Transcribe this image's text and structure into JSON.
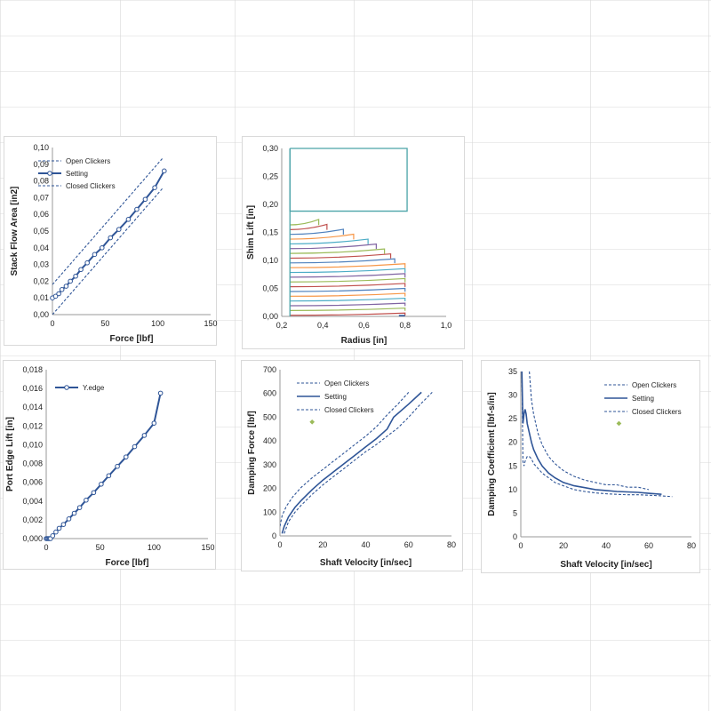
{
  "sheet": {
    "gridline_color": "#d9d9d9"
  },
  "colors": {
    "series": "#2f5597",
    "outline": "#4aa3a8",
    "marker": "#9bbb59"
  },
  "chart_data": [
    {
      "type": "line",
      "xlabel": "Force [lbf]",
      "ylabel": "Stack Flow Area [in2]",
      "xlim": [
        0,
        150
      ],
      "xticks": [
        "0",
        "50",
        "100",
        "150"
      ],
      "xtick_values": [
        0,
        50,
        100,
        150
      ],
      "ylim": [
        0,
        0.1
      ],
      "yticks": [
        "0,00",
        "0,01",
        "0,02",
        "0,03",
        "0,04",
        "0,05",
        "0,06",
        "0,07",
        "0,08",
        "0,09",
        "0,10"
      ],
      "ytick_values": [
        0,
        0.01,
        0.02,
        0.03,
        0.04,
        0.05,
        0.06,
        0.07,
        0.08,
        0.09,
        0.1
      ],
      "legend_position": "top-left",
      "series": [
        {
          "name": "Open Clickers",
          "style": "dashed",
          "x": [
            0,
            105
          ],
          "y": [
            0.018,
            0.094
          ]
        },
        {
          "name": "Setting",
          "style": "solid-markers",
          "x": [
            0,
            3,
            6,
            9,
            13,
            17,
            22,
            27,
            33,
            40,
            47,
            55,
            63,
            72,
            80,
            88,
            97,
            106
          ],
          "y": [
            0.01,
            0.011,
            0.0125,
            0.015,
            0.017,
            0.02,
            0.023,
            0.027,
            0.031,
            0.036,
            0.04,
            0.046,
            0.051,
            0.057,
            0.063,
            0.069,
            0.076,
            0.086
          ]
        },
        {
          "name": "Closed Clickers",
          "style": "dashed",
          "x": [
            0,
            105
          ],
          "y": [
            0.0,
            0.076
          ]
        }
      ]
    },
    {
      "type": "line",
      "xlabel": "Radius [in]",
      "ylabel": "Shim Lift [in]",
      "xlim": [
        0.2,
        1.0
      ],
      "xticks": [
        "0,2",
        "0,4",
        "0,6",
        "0,8",
        "1,0"
      ],
      "xtick_values": [
        0.2,
        0.4,
        0.6,
        0.8,
        1.0
      ],
      "ylim": [
        0,
        0.3
      ],
      "yticks": [
        "0,00",
        "0,05",
        "0,10",
        "0,15",
        "0,20",
        "0,25",
        "0,30"
      ],
      "ytick_values": [
        0,
        0.05,
        0.1,
        0.15,
        0.2,
        0.25,
        0.3
      ],
      "outline": {
        "x": [
          0.24,
          0.24,
          0.81,
          0.81,
          0.24
        ],
        "y": [
          0.3,
          0.188,
          0.188,
          0.3,
          0.3
        ]
      },
      "outline_right": {
        "x": [
          0.81,
          0.81
        ],
        "y": [
          0.3,
          0.0
        ]
      },
      "shims": {
        "x0": 0.24,
        "bottom": 0.002,
        "count": 20,
        "step": 0.0085,
        "outer_radius": 0.8,
        "top_outer_radii": [
          0.38,
          0.42,
          0.5,
          0.55,
          0.62,
          0.66,
          0.7,
          0.73,
          0.75
        ]
      },
      "shim_colors": [
        "#c0504d",
        "#9bbb59",
        "#8064a2",
        "#4bacc6",
        "#f79646",
        "#4f81bd",
        "#c0504d",
        "#9bbb59",
        "#8064a2",
        "#4bacc6",
        "#f79646",
        "#4f81bd",
        "#c0504d",
        "#9bbb59",
        "#8064a2",
        "#4bacc6",
        "#f79646",
        "#4f81bd",
        "#c0504d",
        "#9bbb59"
      ]
    },
    {
      "type": "line",
      "xlabel": "Force [lbf]",
      "ylabel": "Port Edge Lift [in]",
      "xlim": [
        0,
        150
      ],
      "xticks": [
        "0",
        "50",
        "100",
        "150"
      ],
      "xtick_values": [
        0,
        50,
        100,
        150
      ],
      "ylim": [
        0,
        0.018
      ],
      "yticks": [
        "0,000",
        "0,002",
        "0,004",
        "0,006",
        "0,008",
        "0,010",
        "0,012",
        "0,014",
        "0,016",
        "0,018"
      ],
      "ytick_values": [
        0,
        0.002,
        0.004,
        0.006,
        0.008,
        0.01,
        0.012,
        0.014,
        0.016,
        0.018
      ],
      "legend_position": "top-left",
      "series": [
        {
          "name": "Y.edge",
          "style": "solid-markers",
          "x": [
            0,
            1,
            2,
            3,
            4,
            6,
            9,
            12,
            16,
            21,
            26,
            31,
            37,
            44,
            51,
            58,
            66,
            74,
            82,
            91,
            100,
            106
          ],
          "y": [
            0,
            0,
            0,
            0,
            0,
            0.0003,
            0.0007,
            0.0011,
            0.0015,
            0.0021,
            0.0027,
            0.0033,
            0.0041,
            0.0049,
            0.0058,
            0.0067,
            0.0077,
            0.0087,
            0.0098,
            0.011,
            0.0123,
            0.0155
          ]
        }
      ]
    },
    {
      "type": "line",
      "xlabel": "Shaft Velocity [in/sec]",
      "ylabel": "Damping Force [lbf]",
      "xlim": [
        0,
        80
      ],
      "xticks": [
        "0",
        "20",
        "40",
        "60",
        "80"
      ],
      "xtick_values": [
        0,
        20,
        40,
        60,
        80
      ],
      "ylim": [
        0,
        700
      ],
      "yticks": [
        "0",
        "100",
        "200",
        "300",
        "400",
        "500",
        "600",
        "700"
      ],
      "ytick_values": [
        0,
        100,
        200,
        300,
        400,
        500,
        600,
        700
      ],
      "legend_position": "top-left",
      "series": [
        {
          "name": "Open Clickers",
          "style": "dashed",
          "x": [
            0,
            1,
            3,
            6,
            10,
            15,
            20,
            25,
            30,
            35,
            40,
            45,
            50,
            55,
            60
          ],
          "y": [
            40,
            85,
            125,
            165,
            205,
            245,
            280,
            315,
            350,
            385,
            420,
            460,
            510,
            555,
            605
          ]
        },
        {
          "name": "Setting",
          "style": "solid",
          "x": [
            1,
            2,
            4,
            7,
            10,
            15,
            20,
            25,
            30,
            35,
            40,
            45,
            50,
            53,
            60,
            66
          ],
          "y": [
            10,
            40,
            80,
            120,
            150,
            195,
            235,
            270,
            305,
            340,
            375,
            410,
            450,
            500,
            555,
            605
          ]
        },
        {
          "name": "Closed Clickers",
          "style": "dashed",
          "x": [
            2,
            4,
            7,
            10,
            15,
            20,
            25,
            30,
            35,
            40,
            45,
            50,
            55,
            60,
            65,
            71
          ],
          "y": [
            10,
            60,
            100,
            130,
            175,
            215,
            250,
            285,
            320,
            355,
            385,
            420,
            455,
            500,
            550,
            605
          ]
        }
      ],
      "marker_point": {
        "x": 15,
        "y": 480
      }
    },
    {
      "type": "line",
      "xlabel": "Shaft Velocity [in/sec]",
      "ylabel": "Damping Coefficient  [lbf-s/in]",
      "xlim": [
        0,
        80
      ],
      "xticks": [
        "0",
        "20",
        "40",
        "60",
        "80"
      ],
      "xtick_values": [
        0,
        20,
        40,
        60,
        80
      ],
      "ylim": [
        0,
        35
      ],
      "yticks": [
        "0",
        "5",
        "10",
        "15",
        "20",
        "25",
        "30",
        "35"
      ],
      "ytick_values": [
        0,
        5,
        10,
        15,
        20,
        25,
        30,
        35
      ],
      "legend_position": "top-left",
      "series": [
        {
          "name": "Open Clickers",
          "style": "dashed",
          "x": [
            4,
            5,
            6,
            8,
            10,
            13,
            16,
            20,
            25,
            30,
            35,
            40,
            45,
            50,
            55,
            60
          ],
          "y": [
            35,
            29,
            26,
            22,
            19.5,
            17,
            15.5,
            14,
            12.8,
            12,
            11.5,
            11,
            11,
            10.5,
            10.5,
            10
          ]
        },
        {
          "name": "Setting",
          "style": "solid",
          "x": [
            0.5,
            1,
            1.5,
            2,
            2.5,
            3,
            4,
            5,
            6,
            8,
            10,
            13,
            16,
            20,
            25,
            30,
            35,
            40,
            45,
            50,
            55,
            60,
            66
          ],
          "y": [
            35,
            24,
            26,
            27,
            26,
            24,
            22,
            20,
            18.5,
            16.5,
            15,
            13.5,
            12.5,
            11.5,
            10.8,
            10.4,
            10,
            9.8,
            9.6,
            9.5,
            9.4,
            9.2,
            9
          ]
        },
        {
          "name": "Closed Clickers",
          "style": "dashed",
          "x": [
            0.5,
            1,
            1.5,
            2,
            3,
            4,
            5,
            6,
            8,
            10,
            13,
            16,
            20,
            25,
            30,
            35,
            40,
            45,
            50,
            55,
            60,
            65,
            71
          ],
          "y": [
            35,
            16,
            15,
            16,
            17,
            17,
            16.5,
            15.5,
            14.5,
            13.5,
            12.5,
            11.5,
            10.8,
            10,
            9.6,
            9.3,
            9.1,
            9,
            8.9,
            8.9,
            8.8,
            8.7,
            8.5
          ]
        }
      ],
      "marker_point": {
        "x": 46,
        "y": 24
      }
    }
  ]
}
